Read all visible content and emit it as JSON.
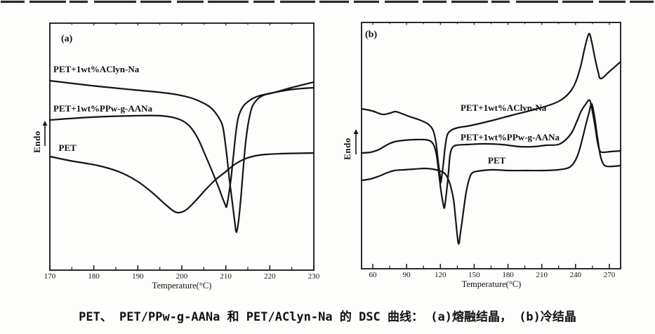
{
  "figure": {
    "caption": "PET、 PET/PPw-g-AANa 和 PET/AClyn-Na 的 DSC 曲线： (a)熔融结晶， (b)冷结晶",
    "panels": [
      {
        "tag": "(a)",
        "xlabel": "Temperature(°C)",
        "ylabel": "Endo"
      },
      {
        "tag": "(b)",
        "xlabel": "Temperature(°C)",
        "ylabel": "Endo"
      }
    ]
  },
  "chart_data": [
    {
      "type": "line",
      "panel": "(a)",
      "title": "DSC melt-crystallization curves",
      "xlabel": "Temperature(°C)",
      "ylabel": "Endo",
      "x_range": [
        170,
        230
      ],
      "x_ticks": [
        170,
        180,
        190,
        200,
        210,
        220,
        230
      ],
      "grid": false,
      "series": [
        {
          "name": "PET+1wt%AClyn-Na",
          "dip_temp_c": 212.4,
          "label_pos": [
            170.8,
            28.6
          ],
          "points": [
            [
              170,
              27.0
            ],
            [
              179.4,
              26.3
            ],
            [
              189,
              25.7
            ],
            [
              197,
              25.2
            ],
            [
              201.8,
              24.6
            ],
            [
              204.6,
              23.9
            ],
            [
              206.5,
              23.2
            ],
            [
              207.8,
              22.3
            ],
            [
              208.8,
              21.3
            ],
            [
              209.4,
              20.2
            ],
            [
              210.1,
              17.0
            ],
            [
              210.8,
              13.0
            ],
            [
              211.5,
              9.5
            ],
            [
              212.0,
              7.0
            ],
            [
              212.4,
              5.4
            ],
            [
              212.9,
              7.0
            ],
            [
              213.4,
              10.2
            ],
            [
              213.9,
              14.0
            ],
            [
              214.5,
              18.2
            ],
            [
              215.2,
              21.3
            ],
            [
              216.0,
              23.3
            ],
            [
              217.1,
              24.3
            ],
            [
              218.5,
              24.9
            ],
            [
              220.9,
              25.3
            ],
            [
              224.9,
              26.0
            ],
            [
              230,
              26.8
            ]
          ]
        },
        {
          "name": "PET+1wt%PPw-g-AANa",
          "dip_temp_c": 210.2,
          "label_pos": [
            170.8,
            23.0
          ],
          "points": [
            [
              170,
              21.4
            ],
            [
              179.4,
              21.8
            ],
            [
              189,
              22.0
            ],
            [
              195.4,
              22.0
            ],
            [
              199.4,
              21.5
            ],
            [
              201.8,
              20.5
            ],
            [
              203.7,
              18.7
            ],
            [
              205.4,
              16.3
            ],
            [
              207.0,
              13.9
            ],
            [
              208.3,
              11.9
            ],
            [
              209.3,
              10.2
            ],
            [
              209.9,
              9.3
            ],
            [
              210.2,
              9.1
            ],
            [
              210.8,
              11.3
            ],
            [
              211.3,
              13.7
            ],
            [
              211.8,
              16.7
            ],
            [
              212.3,
              19.7
            ],
            [
              212.9,
              21.9
            ],
            [
              213.9,
              23.3
            ],
            [
              215.2,
              24.1
            ],
            [
              216.9,
              24.7
            ],
            [
              219.3,
              25.1
            ],
            [
              222.5,
              25.5
            ],
            [
              225.7,
              25.8
            ],
            [
              230,
              26.0
            ]
          ]
        },
        {
          "name": "PET",
          "dip_temp_c": 199.4,
          "label_pos": [
            172.0,
            17.4
          ],
          "points": [
            [
              170,
              16.2
            ],
            [
              174.6,
              15.6
            ],
            [
              181,
              14.9
            ],
            [
              185.8,
              14.0
            ],
            [
              189.8,
              12.7
            ],
            [
              193.0,
              11.2
            ],
            [
              196.2,
              9.4
            ],
            [
              198.2,
              8.4
            ],
            [
              199.4,
              8.2
            ],
            [
              201.0,
              8.6
            ],
            [
              203.0,
              9.8
            ],
            [
              205.3,
              11.4
            ],
            [
              207.5,
              12.8
            ],
            [
              209.7,
              13.9
            ],
            [
              212.1,
              15.1
            ],
            [
              214.5,
              15.9
            ],
            [
              217.7,
              16.4
            ],
            [
              222.5,
              16.6
            ],
            [
              230,
              16.7
            ]
          ]
        }
      ]
    },
    {
      "type": "line",
      "panel": "(b)",
      "title": "DSC cold-crystallization curves",
      "xlabel": "Temperature(°C)",
      "ylabel": "Endo",
      "x_range": [
        50,
        280
      ],
      "x_ticks": [
        60,
        90,
        120,
        150,
        180,
        210,
        240,
        270
      ],
      "grid": false,
      "series": [
        {
          "name": "PET+1wt%AClyn-Na",
          "cold_cryst_temp_c": 120.4,
          "melt_peak_temp_c": 251.9,
          "label_pos": [
            137.9,
            22.9
          ],
          "points": [
            [
              50,
              22.8
            ],
            [
              59.3,
              22.5
            ],
            [
              68.7,
              22.0
            ],
            [
              75.6,
              22.2
            ],
            [
              79.9,
              22.4
            ],
            [
              84.3,
              22.2
            ],
            [
              92.4,
              21.7
            ],
            [
              101.7,
              21.2
            ],
            [
              109.2,
              20.6
            ],
            [
              113.6,
              19.7
            ],
            [
              116.1,
              18.0
            ],
            [
              117.9,
              15.5
            ],
            [
              119.8,
              13.1
            ],
            [
              120.4,
              12.3
            ],
            [
              122.3,
              14.5
            ],
            [
              124.2,
              17.3
            ],
            [
              126.0,
              19.0
            ],
            [
              129.2,
              19.7
            ],
            [
              135.4,
              20.1
            ],
            [
              146.6,
              20.4
            ],
            [
              165.3,
              21.1
            ],
            [
              184.0,
              21.9
            ],
            [
              201.5,
              22.6
            ],
            [
              218.3,
              23.4
            ],
            [
              227.6,
              24.1
            ],
            [
              235.1,
              25.2
            ],
            [
              240.1,
              26.6
            ],
            [
              244.5,
              28.8
            ],
            [
              248.2,
              31.5
            ],
            [
              251.9,
              33.5
            ],
            [
              254.4,
              32.3
            ],
            [
              256.9,
              30.3
            ],
            [
              260.0,
              28.1
            ],
            [
              262.5,
              27.1
            ],
            [
              270.0,
              28.1
            ],
            [
              280,
              29.5
            ]
          ]
        },
        {
          "name": "PET+1wt%PPw-g-AANa",
          "cold_cryst_temp_c": 123.6,
          "melt_peak_temp_c": 252.6,
          "label_pos": [
            137.9,
            18.7
          ],
          "points": [
            [
              50,
              16.5
            ],
            [
              58.1,
              16.6
            ],
            [
              65.6,
              17.0
            ],
            [
              73.1,
              17.7
            ],
            [
              79.3,
              18.1
            ],
            [
              87.4,
              18.3
            ],
            [
              96.8,
              18.4
            ],
            [
              106.1,
              18.4
            ],
            [
              111.1,
              18.2
            ],
            [
              114.2,
              17.6
            ],
            [
              116.7,
              16.1
            ],
            [
              118.6,
              13.6
            ],
            [
              120.4,
              11.3
            ],
            [
              122.3,
              9.4
            ],
            [
              123.6,
              8.7
            ],
            [
              125.4,
              10.9
            ],
            [
              127.3,
              13.9
            ],
            [
              128.5,
              16.1
            ],
            [
              130.4,
              17.2
            ],
            [
              134.1,
              17.6
            ],
            [
              143.5,
              17.7
            ],
            [
              159.1,
              17.8
            ],
            [
              174.7,
              17.7
            ],
            [
              190.2,
              17.4
            ],
            [
              202.7,
              17.4
            ],
            [
              213.9,
              17.6
            ],
            [
              224.5,
              17.7
            ],
            [
              231.4,
              18.4
            ],
            [
              237.0,
              19.5
            ],
            [
              241.4,
              21.1
            ],
            [
              245.1,
              22.5
            ],
            [
              248.8,
              23.4
            ],
            [
              252.6,
              24.0
            ],
            [
              255.1,
              22.3
            ],
            [
              257.6,
              20.0
            ],
            [
              259.4,
              18.1
            ],
            [
              261.3,
              16.9
            ],
            [
              263.8,
              16.6
            ],
            [
              271.3,
              16.7
            ],
            [
              280,
              16.8
            ]
          ]
        },
        {
          "name": "PET",
          "cold_cryst_temp_c": 136.0,
          "melt_peak_temp_c": 254.4,
          "label_pos": [
            162.2,
            15.4
          ],
          "points": [
            [
              50,
              12.6
            ],
            [
              58.1,
              12.8
            ],
            [
              65.6,
              13.2
            ],
            [
              73.1,
              13.7
            ],
            [
              79.3,
              14.0
            ],
            [
              87.4,
              14.1
            ],
            [
              96.8,
              14.2
            ],
            [
              106.1,
              14.3
            ],
            [
              113.0,
              14.2
            ],
            [
              118.6,
              14.0
            ],
            [
              122.9,
              13.7
            ],
            [
              126.0,
              13.1
            ],
            [
              129.2,
              11.7
            ],
            [
              131.7,
              9.8
            ],
            [
              133.5,
              7.1
            ],
            [
              136.0,
              3.6
            ],
            [
              137.9,
              5.2
            ],
            [
              140.4,
              8.1
            ],
            [
              142.9,
              10.9
            ],
            [
              145.4,
              12.7
            ],
            [
              147.9,
              13.6
            ],
            [
              152.9,
              13.9
            ],
            [
              165.3,
              14.1
            ],
            [
              180.9,
              14.0
            ],
            [
              196.5,
              14.0
            ],
            [
              212.0,
              14.0
            ],
            [
              224.5,
              14.1
            ],
            [
              233.9,
              14.4
            ],
            [
              238.9,
              15.2
            ],
            [
              242.6,
              16.5
            ],
            [
              245.7,
              18.3
            ],
            [
              248.8,
              20.3
            ],
            [
              251.9,
              22.2
            ],
            [
              254.4,
              23.5
            ],
            [
              256.9,
              21.6
            ],
            [
              259.4,
              18.7
            ],
            [
              261.9,
              16.2
            ],
            [
              264.4,
              15.0
            ],
            [
              267.5,
              14.6
            ],
            [
              273.8,
              14.6
            ],
            [
              280,
              14.7
            ]
          ]
        }
      ]
    }
  ]
}
